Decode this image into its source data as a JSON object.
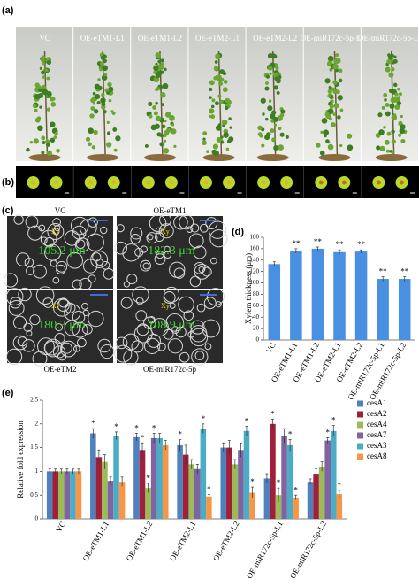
{
  "panel_a": {
    "label": "(a)",
    "lines": [
      "VC",
      "OE-eTM1-L1",
      "OE-eTM1-L2",
      "OE-eTM2-L1",
      "OE-eTM2-L2",
      "OE-miR172c-5p-L1",
      "OE-miR172c-5p-L2"
    ]
  },
  "panel_b": {
    "label": "(b)"
  },
  "panel_c": {
    "label": "(c)",
    "images": [
      {
        "title": "VC",
        "tissue": "Xy",
        "measure": "105.2 μm"
      },
      {
        "title": "OE-eTM1",
        "tissue": "Xy",
        "measure": "182.3 μm"
      },
      {
        "title": "OE-eTM2",
        "tissue": "Xy",
        "measure": "180.3 μm"
      },
      {
        "title": "OE-miR172c-5p",
        "tissue": "Xy",
        "measure": "108.9 μm"
      }
    ]
  },
  "chart_data": [
    {
      "type": "bar",
      "panel": "(d)",
      "y_label": "Xylem thickness (μm)",
      "categories": [
        "VC",
        "OE-eTM1-L1",
        "OE-eTM1-L2",
        "OE-eTM2-L1",
        "OE-eTM2-L2",
        "OE-miR172c-5p-L1",
        "OE-miR172c-5p-L2"
      ],
      "values": [
        133,
        156,
        160,
        154,
        155,
        107,
        107
      ],
      "errors": [
        4,
        4,
        3,
        4,
        3,
        4,
        4
      ],
      "significance": [
        null,
        "**",
        "**",
        "**",
        "**",
        "**",
        "**"
      ],
      "color": "#4a90e2",
      "ylim": [
        0,
        180
      ],
      "yticks": [
        0,
        20,
        40,
        60,
        80,
        100,
        120,
        140,
        160,
        180
      ]
    },
    {
      "type": "bar",
      "panel": "(e)",
      "y_label": "Relative fold expression",
      "categories": [
        "VC",
        "OE-eTM1-L1",
        "OE-eTM1-L2",
        "OE-eTM2-L1",
        "OE-eTM2-L2",
        "OE-miR172c-5p-L1",
        "OE-miR172c-5p-L2"
      ],
      "series": [
        {
          "name": "cesA1",
          "color": "#4f81bd",
          "values": [
            1,
            1.8,
            1.72,
            1.55,
            1.5,
            0.85,
            0.78
          ],
          "errors": [
            0.05,
            0.1,
            0.08,
            0.12,
            0.1,
            0.1,
            0.06
          ],
          "significance": [
            null,
            "*",
            "*",
            "*",
            null,
            null,
            null
          ]
        },
        {
          "name": "cesA2",
          "color": "#a0203c",
          "values": [
            1,
            1.3,
            1.45,
            1.35,
            1.5,
            2.0,
            0.95
          ],
          "errors": [
            0.05,
            0.15,
            0.15,
            0.2,
            0.15,
            0.1,
            0.1
          ],
          "significance": [
            null,
            null,
            "*",
            null,
            null,
            "*",
            null
          ]
        },
        {
          "name": "cesA4",
          "color": "#9bbb59",
          "values": [
            1,
            1.2,
            0.65,
            1.15,
            1.15,
            0.5,
            1.1
          ],
          "errors": [
            0.05,
            0.15,
            0.1,
            0.1,
            0.1,
            0.15,
            0.1
          ],
          "significance": [
            null,
            null,
            "*",
            null,
            null,
            "*",
            null
          ]
        },
        {
          "name": "cesA7",
          "color": "#8064a2",
          "values": [
            1,
            0.8,
            1.7,
            1.05,
            1.45,
            1.75,
            1.65
          ],
          "errors": [
            0.05,
            0.08,
            0.1,
            0.1,
            0.15,
            0.15,
            0.06
          ],
          "significance": [
            null,
            null,
            "*",
            null,
            null,
            null,
            "*"
          ]
        },
        {
          "name": "cesA3",
          "color": "#4bacc6",
          "values": [
            1,
            1.75,
            1.7,
            1.9,
            1.85,
            1.55,
            1.85
          ],
          "errors": [
            0.05,
            0.08,
            0.1,
            0.1,
            0.1,
            0.12,
            0.12
          ],
          "significance": [
            null,
            "*",
            null,
            "*",
            "*",
            "*",
            "*"
          ]
        },
        {
          "name": "cesA8",
          "color": "#f79646",
          "values": [
            1,
            0.78,
            1.55,
            0.47,
            0.55,
            0.45,
            0.52
          ],
          "errors": [
            0.05,
            0.1,
            0.1,
            0.04,
            0.12,
            0.05,
            0.08
          ],
          "significance": [
            null,
            null,
            null,
            "*",
            "*",
            "*",
            "*"
          ]
        }
      ],
      "ylim": [
        0,
        2.5
      ],
      "yticks": [
        0,
        0.5,
        1,
        1.5,
        2,
        2.5
      ]
    }
  ]
}
